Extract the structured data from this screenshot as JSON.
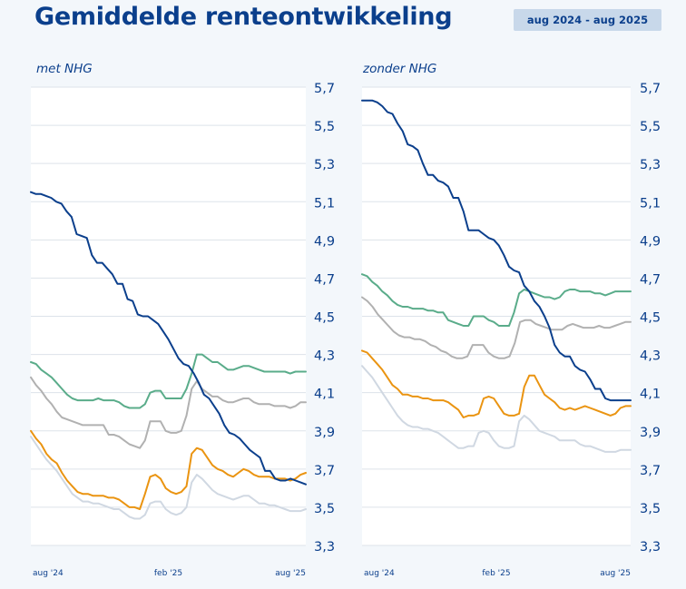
{
  "header": {
    "title": "Gemiddelde renteontwikkeling",
    "period": "aug 2024 - aug 2025"
  },
  "colors": {
    "navy": "#0b3f8c",
    "green": "#5aac8a",
    "gray": "#b1b1b1",
    "orange": "#ea9411",
    "lightgray": "#d0d8e2",
    "panel_bg": "#f3f7fb",
    "grid": "#dde3ea"
  },
  "chart_data": [
    {
      "type": "line",
      "title": "met NHG",
      "x_labels": [
        "aug '24",
        "feb '25",
        "aug '25"
      ],
      "y_ticks": [
        "3,3",
        "3,5",
        "3,7",
        "3,9",
        "4,1",
        "4,3",
        "4,5",
        "4,7",
        "4,9",
        "5,1",
        "5,3",
        "5,5",
        "5,7"
      ],
      "ylim": [
        3.3,
        5.7
      ],
      "x_range": [
        0,
        54
      ],
      "grid": true,
      "series": [
        {
          "color": "navy",
          "values": [
            5.15,
            5.14,
            5.14,
            5.13,
            5.12,
            5.1,
            5.09,
            5.05,
            5.02,
            4.93,
            4.92,
            4.91,
            4.82,
            4.78,
            4.78,
            4.75,
            4.72,
            4.67,
            4.67,
            4.59,
            4.58,
            4.51,
            4.5,
            4.5,
            4.48,
            4.46,
            4.42,
            4.38,
            4.33,
            4.28,
            4.25,
            4.24,
            4.2,
            4.15,
            4.09,
            4.07,
            4.03,
            3.99,
            3.93,
            3.89,
            3.88,
            3.86,
            3.83,
            3.8,
            3.78,
            3.76,
            3.69,
            3.69,
            3.65,
            3.64,
            3.64,
            3.65,
            3.64,
            3.63,
            3.62
          ]
        },
        {
          "color": "green",
          "values": [
            4.26,
            4.25,
            4.22,
            4.2,
            4.18,
            4.15,
            4.12,
            4.09,
            4.07,
            4.06,
            4.06,
            4.06,
            4.06,
            4.07,
            4.06,
            4.06,
            4.06,
            4.05,
            4.03,
            4.02,
            4.02,
            4.02,
            4.04,
            4.1,
            4.11,
            4.11,
            4.07,
            4.07,
            4.07,
            4.07,
            4.12,
            4.2,
            4.3,
            4.3,
            4.28,
            4.26,
            4.26,
            4.24,
            4.22,
            4.22,
            4.23,
            4.24,
            4.24,
            4.23,
            4.22,
            4.21,
            4.21,
            4.21,
            4.21,
            4.21,
            4.2,
            4.21,
            4.21,
            4.21
          ]
        },
        {
          "color": "gray",
          "values": [
            4.18,
            4.14,
            4.11,
            4.07,
            4.04,
            4.0,
            3.97,
            3.96,
            3.95,
            3.94,
            3.93,
            3.93,
            3.93,
            3.93,
            3.93,
            3.88,
            3.88,
            3.87,
            3.85,
            3.83,
            3.82,
            3.81,
            3.85,
            3.95,
            3.95,
            3.95,
            3.9,
            3.89,
            3.89,
            3.9,
            3.98,
            4.12,
            4.16,
            4.12,
            4.1,
            4.08,
            4.08,
            4.06,
            4.05,
            4.05,
            4.06,
            4.07,
            4.07,
            4.05,
            4.04,
            4.04,
            4.04,
            4.03,
            4.03,
            4.03,
            4.02,
            4.03,
            4.05,
            4.05
          ]
        },
        {
          "color": "orange",
          "values": [
            3.9,
            3.86,
            3.83,
            3.78,
            3.75,
            3.73,
            3.68,
            3.64,
            3.61,
            3.58,
            3.57,
            3.57,
            3.56,
            3.56,
            3.56,
            3.55,
            3.55,
            3.54,
            3.52,
            3.5,
            3.5,
            3.49,
            3.57,
            3.66,
            3.67,
            3.65,
            3.6,
            3.58,
            3.57,
            3.58,
            3.61,
            3.78,
            3.81,
            3.8,
            3.76,
            3.72,
            3.7,
            3.69,
            3.67,
            3.66,
            3.68,
            3.7,
            3.69,
            3.67,
            3.66,
            3.66,
            3.66,
            3.65,
            3.65,
            3.65,
            3.64,
            3.65,
            3.67,
            3.68
          ]
        },
        {
          "color": "lightgray",
          "values": [
            3.87,
            3.83,
            3.79,
            3.75,
            3.72,
            3.69,
            3.65,
            3.61,
            3.57,
            3.55,
            3.53,
            3.53,
            3.52,
            3.52,
            3.51,
            3.5,
            3.49,
            3.49,
            3.47,
            3.45,
            3.44,
            3.44,
            3.46,
            3.52,
            3.53,
            3.53,
            3.49,
            3.47,
            3.46,
            3.47,
            3.5,
            3.63,
            3.67,
            3.65,
            3.62,
            3.59,
            3.57,
            3.56,
            3.55,
            3.54,
            3.55,
            3.56,
            3.56,
            3.54,
            3.52,
            3.52,
            3.51,
            3.51,
            3.5,
            3.49,
            3.48,
            3.48,
            3.48,
            3.49
          ]
        }
      ]
    },
    {
      "type": "line",
      "title": "zonder NHG",
      "x_labels": [
        "aug '24",
        "feb '25",
        "aug '25"
      ],
      "y_ticks": [
        "3,3",
        "3,5",
        "3,7",
        "3,9",
        "4,1",
        "4,3",
        "4,5",
        "4,7",
        "4,9",
        "5,1",
        "5,3",
        "5,5",
        "5,7"
      ],
      "ylim": [
        3.3,
        5.7
      ],
      "x_range": [
        0,
        54
      ],
      "grid": true,
      "series": [
        {
          "color": "navy",
          "values": [
            5.63,
            5.63,
            5.63,
            5.62,
            5.6,
            5.57,
            5.56,
            5.51,
            5.47,
            5.4,
            5.39,
            5.37,
            5.3,
            5.24,
            5.24,
            5.21,
            5.2,
            5.18,
            5.12,
            5.12,
            5.05,
            4.95,
            4.95,
            4.95,
            4.93,
            4.91,
            4.9,
            4.87,
            4.82,
            4.76,
            4.74,
            4.73,
            4.66,
            4.63,
            4.58,
            4.55,
            4.5,
            4.44,
            4.35,
            4.31,
            4.29,
            4.29,
            4.24,
            4.22,
            4.21,
            4.17,
            4.12,
            4.12,
            4.07,
            4.06,
            4.06,
            4.06,
            4.06,
            4.06
          ]
        },
        {
          "color": "green",
          "values": [
            4.72,
            4.71,
            4.68,
            4.66,
            4.63,
            4.61,
            4.58,
            4.56,
            4.55,
            4.55,
            4.54,
            4.54,
            4.54,
            4.53,
            4.53,
            4.52,
            4.52,
            4.48,
            4.47,
            4.46,
            4.45,
            4.45,
            4.5,
            4.5,
            4.5,
            4.48,
            4.47,
            4.45,
            4.45,
            4.45,
            4.52,
            4.62,
            4.64,
            4.63,
            4.62,
            4.61,
            4.6,
            4.6,
            4.59,
            4.6,
            4.63,
            4.64,
            4.64,
            4.63,
            4.63,
            4.63,
            4.62,
            4.62,
            4.61,
            4.62,
            4.63,
            4.63,
            4.63,
            4.63
          ]
        },
        {
          "color": "gray",
          "values": [
            4.6,
            4.58,
            4.55,
            4.51,
            4.48,
            4.45,
            4.42,
            4.4,
            4.39,
            4.39,
            4.38,
            4.38,
            4.37,
            4.35,
            4.34,
            4.32,
            4.31,
            4.29,
            4.28,
            4.28,
            4.29,
            4.35,
            4.35,
            4.35,
            4.31,
            4.29,
            4.28,
            4.28,
            4.29,
            4.36,
            4.47,
            4.48,
            4.48,
            4.46,
            4.45,
            4.44,
            4.43,
            4.43,
            4.43,
            4.45,
            4.46,
            4.45,
            4.44,
            4.44,
            4.44,
            4.45,
            4.44,
            4.44,
            4.45,
            4.46,
            4.47,
            4.47
          ]
        },
        {
          "color": "orange",
          "values": [
            4.32,
            4.31,
            4.28,
            4.25,
            4.22,
            4.18,
            4.14,
            4.12,
            4.09,
            4.09,
            4.08,
            4.08,
            4.07,
            4.07,
            4.06,
            4.06,
            4.06,
            4.05,
            4.03,
            4.01,
            3.97,
            3.98,
            3.98,
            3.99,
            4.07,
            4.08,
            4.07,
            4.03,
            3.99,
            3.98,
            3.98,
            3.99,
            4.13,
            4.19,
            4.19,
            4.14,
            4.09,
            4.07,
            4.05,
            4.02,
            4.01,
            4.02,
            4.01,
            4.02,
            4.03,
            4.02,
            4.01,
            4.0,
            3.99,
            3.98,
            3.99,
            4.02,
            4.03,
            4.03
          ]
        },
        {
          "color": "lightgray",
          "values": [
            4.24,
            4.21,
            4.18,
            4.14,
            4.1,
            4.06,
            4.02,
            3.98,
            3.95,
            3.93,
            3.92,
            3.92,
            3.91,
            3.91,
            3.9,
            3.89,
            3.87,
            3.85,
            3.83,
            3.81,
            3.81,
            3.82,
            3.82,
            3.89,
            3.9,
            3.89,
            3.85,
            3.82,
            3.81,
            3.81,
            3.82,
            3.95,
            3.98,
            3.96,
            3.93,
            3.9,
            3.89,
            3.88,
            3.87,
            3.85,
            3.85,
            3.85,
            3.85,
            3.83,
            3.82,
            3.82,
            3.81,
            3.8,
            3.79,
            3.79,
            3.79,
            3.8,
            3.8,
            3.8
          ]
        }
      ]
    }
  ]
}
